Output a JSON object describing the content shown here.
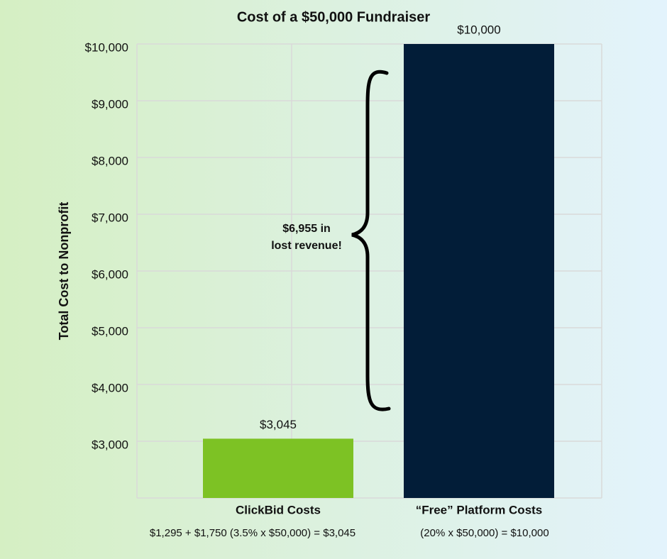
{
  "chart_data": {
    "type": "bar",
    "title": "Cost of a $50,000 Fundraiser",
    "y_label": "Total Cost to Nonprofit",
    "categories": [
      "ClickBid Costs",
      "“Free” Platform Costs"
    ],
    "category_notes": [
      "$1,295 + $1,750 (3.5% x $50,000) = $3,045",
      "(20% x $50,000) = $10,000"
    ],
    "values": [
      3045,
      10000
    ],
    "value_labels": [
      "$3,045",
      "$10,000"
    ],
    "colors": [
      "#7dc224",
      "#021d38"
    ],
    "annotation": [
      "$6,955 in",
      "lost revenue!"
    ],
    "ylim": [
      2000,
      10000
    ],
    "yticks": [
      {
        "value": 3000,
        "label": "$3,000"
      },
      {
        "value": 4000,
        "label": "$4,000"
      },
      {
        "value": 5000,
        "label": "$5,000"
      },
      {
        "value": 6000,
        "label": "$6,000"
      },
      {
        "value": 7000,
        "label": "$7,000"
      },
      {
        "value": 8000,
        "label": "$8,000"
      },
      {
        "value": 9000,
        "label": "$9,000"
      },
      {
        "value": 10000,
        "label": "$10,000"
      }
    ],
    "grid": true
  }
}
